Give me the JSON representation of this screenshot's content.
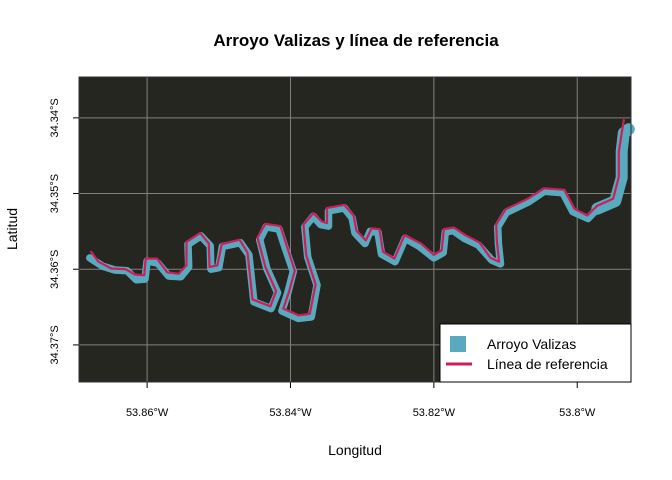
{
  "title": "Arroyo Valizas y línea de referencia",
  "xlabel": "Longitud",
  "ylabel": "Latitud",
  "x_ticks": [
    {
      "value": -53.86,
      "label": "53.86°W"
    },
    {
      "value": -53.84,
      "label": "53.84°W"
    },
    {
      "value": -53.82,
      "label": "53.82°W"
    },
    {
      "value": -53.8,
      "label": "53.80°W",
      "display": "53.8°W"
    }
  ],
  "y_ticks": [
    {
      "value": -34.34,
      "label": "34.34°S"
    },
    {
      "value": -34.35,
      "label": "34.35°S"
    },
    {
      "value": -34.36,
      "label": "34.36°S"
    },
    {
      "value": -34.37,
      "label": "34.37°S"
    }
  ],
  "legend": {
    "position": "bottom-right",
    "items": [
      {
        "label": "Arroyo Valizas",
        "symbol": "square",
        "color": "#5aaabf"
      },
      {
        "label": "Línea de referencia",
        "symbol": "line",
        "color": "#cc1f5a"
      }
    ]
  },
  "colors": {
    "panel_background": "#262620",
    "grid": "#808080",
    "river_fill": "#5aaabf",
    "reference_line": "#cc1f5a"
  },
  "chart_data": {
    "type": "map",
    "crs": "geographic (lon/lat)",
    "xlim": [
      -53.8695,
      -53.7925
    ],
    "ylim": [
      -34.3749,
      -34.3346
    ],
    "grid": true,
    "layers": [
      {
        "name": "Arroyo Valizas",
        "type": "polygon-river",
        "color": "#5aaabf",
        "centerline": [
          [
            -53.868,
            -34.3585
          ],
          [
            -53.8662,
            -34.3596
          ],
          [
            -53.8645,
            -34.3601
          ],
          [
            -53.8628,
            -34.3602
          ],
          [
            -53.8615,
            -34.3614
          ],
          [
            -53.8603,
            -34.3613
          ],
          [
            -53.86,
            -34.3589
          ],
          [
            -53.8585,
            -34.3592
          ],
          [
            -53.857,
            -34.3609
          ],
          [
            -53.8553,
            -34.361
          ],
          [
            -53.8542,
            -34.3597
          ],
          [
            -53.8543,
            -34.3567
          ],
          [
            -53.8525,
            -34.3556
          ],
          [
            -53.8512,
            -34.3569
          ],
          [
            -53.8511,
            -34.36
          ],
          [
            -53.85,
            -34.3598
          ],
          [
            -53.8495,
            -34.357
          ],
          [
            -53.847,
            -34.3565
          ],
          [
            -53.8458,
            -34.3581
          ],
          [
            -53.8451,
            -34.3643
          ],
          [
            -53.8427,
            -34.3652
          ],
          [
            -53.8418,
            -34.3631
          ],
          [
            -53.8433,
            -34.3599
          ],
          [
            -53.8443,
            -34.3561
          ],
          [
            -53.8434,
            -34.3544
          ],
          [
            -53.8416,
            -34.3547
          ],
          [
            -53.8408,
            -34.357
          ],
          [
            -53.8396,
            -34.3603
          ],
          [
            -53.8404,
            -34.3632
          ],
          [
            -53.8412,
            -34.3655
          ],
          [
            -53.8389,
            -34.3665
          ],
          [
            -53.8371,
            -34.3663
          ],
          [
            -53.8363,
            -34.3621
          ],
          [
            -53.8376,
            -34.3584
          ],
          [
            -53.838,
            -34.3544
          ],
          [
            -53.8368,
            -34.353
          ],
          [
            -53.8358,
            -34.3541
          ],
          [
            -53.8347,
            -34.3543
          ],
          [
            -53.8347,
            -34.3523
          ],
          [
            -53.8325,
            -34.3519
          ],
          [
            -53.8314,
            -34.3532
          ],
          [
            -53.831,
            -34.3552
          ],
          [
            -53.8296,
            -34.3566
          ],
          [
            -53.8289,
            -34.355
          ],
          [
            -53.8278,
            -34.3551
          ],
          [
            -53.8273,
            -34.358
          ],
          [
            -53.8254,
            -34.359
          ],
          [
            -53.824,
            -34.3559
          ],
          [
            -53.822,
            -34.357
          ],
          [
            -53.82,
            -34.3585
          ],
          [
            -53.8187,
            -34.3578
          ],
          [
            -53.8184,
            -34.3551
          ],
          [
            -53.8173,
            -34.3549
          ],
          [
            -53.8158,
            -34.3559
          ],
          [
            -53.8138,
            -34.3568
          ],
          [
            -53.8119,
            -34.3588
          ],
          [
            -53.8107,
            -34.3593
          ],
          [
            -53.811,
            -34.3566
          ],
          [
            -53.8111,
            -34.3544
          ],
          [
            -53.8099,
            -34.3525
          ],
          [
            -53.8068,
            -34.3511
          ],
          [
            -53.8046,
            -34.3497
          ],
          [
            -53.802,
            -34.3499
          ],
          [
            -53.8006,
            -34.3524
          ],
          [
            -53.7985,
            -34.3533
          ],
          [
            -53.7972,
            -34.352
          ],
          [
            -53.7947,
            -34.351
          ],
          [
            -53.7938,
            -34.3479
          ],
          [
            -53.7938,
            -34.3444
          ],
          [
            -53.7935,
            -34.342
          ],
          [
            -53.7928,
            -34.3415
          ]
        ]
      },
      {
        "name": "Línea de referencia",
        "type": "line",
        "color": "#cc1f5a",
        "points": [
          [
            -53.8678,
            -34.3577
          ],
          [
            -53.8668,
            -34.359
          ],
          [
            -53.865,
            -34.3599
          ],
          [
            -53.863,
            -34.36
          ],
          [
            -53.8617,
            -34.3607
          ],
          [
            -53.8604,
            -34.3608
          ],
          [
            -53.8602,
            -34.3586
          ],
          [
            -53.8586,
            -34.3586
          ],
          [
            -53.8572,
            -34.3604
          ],
          [
            -53.8556,
            -34.3606
          ],
          [
            -53.8545,
            -34.3595
          ],
          [
            -53.8545,
            -34.3564
          ],
          [
            -53.8526,
            -34.3552
          ],
          [
            -53.8514,
            -34.3566
          ],
          [
            -53.8513,
            -34.3597
          ],
          [
            -53.8502,
            -34.3595
          ],
          [
            -53.8496,
            -34.3567
          ],
          [
            -53.8471,
            -34.3561
          ],
          [
            -53.846,
            -34.3578
          ],
          [
            -53.8453,
            -34.364
          ],
          [
            -53.8428,
            -34.3649
          ],
          [
            -53.842,
            -34.3629
          ],
          [
            -53.8435,
            -34.3597
          ],
          [
            -53.8446,
            -34.3558
          ],
          [
            -53.8435,
            -34.354
          ],
          [
            -53.8414,
            -34.3543
          ],
          [
            -53.8406,
            -34.3567
          ],
          [
            -53.8394,
            -34.3602
          ],
          [
            -53.8402,
            -34.363
          ],
          [
            -53.841,
            -34.3652
          ],
          [
            -53.8389,
            -34.3661
          ],
          [
            -53.8373,
            -34.3659
          ],
          [
            -53.8365,
            -34.362
          ],
          [
            -53.8378,
            -34.3582
          ],
          [
            -53.8382,
            -34.3541
          ],
          [
            -53.8368,
            -34.3526
          ],
          [
            -53.8356,
            -34.3537
          ],
          [
            -53.8349,
            -34.3539
          ],
          [
            -53.8349,
            -34.3519
          ],
          [
            -53.8325,
            -34.3515
          ],
          [
            -53.8312,
            -34.3529
          ],
          [
            -53.8308,
            -34.3549
          ],
          [
            -53.8295,
            -34.3562
          ],
          [
            -53.8287,
            -34.3546
          ],
          [
            -53.8276,
            -34.3547
          ],
          [
            -53.8271,
            -34.3577
          ],
          [
            -53.8255,
            -34.3586
          ],
          [
            -53.8241,
            -34.3555
          ],
          [
            -53.8218,
            -34.3566
          ],
          [
            -53.82,
            -34.3581
          ],
          [
            -53.8189,
            -34.3575
          ],
          [
            -53.8186,
            -34.3547
          ],
          [
            -53.8172,
            -34.3545
          ],
          [
            -53.8156,
            -34.3555
          ],
          [
            -53.8136,
            -34.3565
          ],
          [
            -53.8121,
            -34.3585
          ],
          [
            -53.8109,
            -34.359
          ],
          [
            -53.8112,
            -34.3563
          ],
          [
            -53.8113,
            -34.3541
          ],
          [
            -53.81,
            -34.3521
          ],
          [
            -53.8069,
            -34.3507
          ],
          [
            -53.8046,
            -34.3493
          ],
          [
            -53.8018,
            -34.3495
          ],
          [
            -53.8004,
            -34.352
          ],
          [
            -53.7986,
            -34.3529
          ],
          [
            -53.7972,
            -34.3516
          ],
          [
            -53.795,
            -34.3507
          ],
          [
            -53.7942,
            -34.3478
          ],
          [
            -53.7942,
            -34.3445
          ],
          [
            -53.7938,
            -34.342
          ],
          [
            -53.7935,
            -34.3403
          ]
        ]
      }
    ]
  }
}
